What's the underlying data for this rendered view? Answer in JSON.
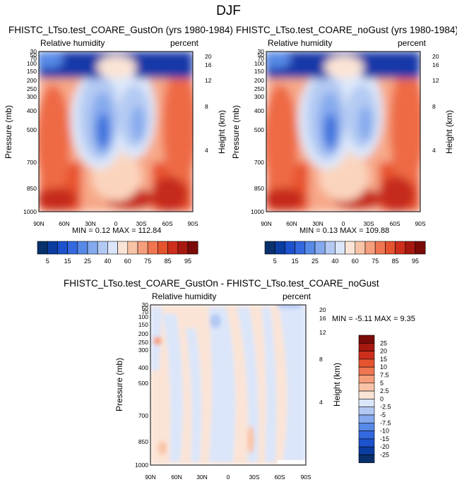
{
  "page_title": "DJF",
  "chart_data": [
    {
      "type": "heatmap",
      "title": "FHISTC_LTso.test_COARE_GustOn (yrs 1980-1984)",
      "left_label": "Relative humidity",
      "right_label": "percent",
      "ylabel": "Pressure (mb)",
      "ylabel_right": "Height (km)",
      "x_ticks": [
        "90N",
        "60N",
        "30N",
        "0",
        "30S",
        "60S",
        "90S"
      ],
      "y_ticks": [
        "1000",
        "850",
        "700",
        "500",
        "400",
        "300",
        "250",
        "200",
        "150",
        "100",
        "70",
        "50",
        "30"
      ],
      "height_ticks": [
        "4",
        "8",
        "12",
        "16",
        "20"
      ],
      "stats": {
        "min_label": "MIN =",
        "min": "0.12",
        "max_label": "MAX =",
        "max": "112.84"
      }
    },
    {
      "type": "heatmap",
      "title": "FHISTC_LTso.test_COARE_noGust (yrs 1980-1984)",
      "left_label": "Relative humidity",
      "right_label": "percent",
      "ylabel": "Pressure (mb)",
      "ylabel_right": "Height (km)",
      "x_ticks": [
        "90N",
        "60N",
        "30N",
        "0",
        "30S",
        "60S",
        "90S"
      ],
      "y_ticks": [
        "1000",
        "850",
        "700",
        "500",
        "400",
        "300",
        "250",
        "200",
        "150",
        "100",
        "70",
        "50",
        "30"
      ],
      "height_ticks": [
        "4",
        "8",
        "12",
        "16",
        "20"
      ],
      "stats": {
        "min_label": "MIN =",
        "min": "0.13",
        "max_label": "MAX =",
        "max": "109.88"
      }
    },
    {
      "type": "heatmap",
      "title": "FHISTC_LTso.test_COARE_GustOn - FHISTC_LTso.test_COARE_noGust",
      "left_label": "Relative humidity",
      "right_label": "percent",
      "ylabel": "Pressure (mb)",
      "ylabel_right": "Height (km)",
      "x_ticks": [
        "90N",
        "60N",
        "30N",
        "0",
        "30S",
        "60S",
        "90S"
      ],
      "y_ticks": [
        "1000",
        "850",
        "700",
        "500",
        "400",
        "300",
        "250",
        "200",
        "150",
        "100",
        "70",
        "50",
        "30"
      ],
      "height_ticks": [
        "4",
        "8",
        "12",
        "16",
        "20"
      ],
      "stats": {
        "min_label": "MIN =",
        "min": "-5.11",
        "max_label": "MAX =",
        "max": "9.35"
      }
    }
  ],
  "colorbar_top": {
    "labels": [
      "5",
      "15",
      "25",
      "40",
      "60",
      "75",
      "85",
      "95"
    ],
    "colors": [
      "#08306b",
      "#0b3ca0",
      "#1c52cd",
      "#3468de",
      "#5789e6",
      "#85a9ee",
      "#b3c9f3",
      "#dbe6fa",
      "#fbe4d6",
      "#f9c3a7",
      "#f59e7c",
      "#ef7651",
      "#e5532f",
      "#ce2f1c",
      "#a71810",
      "#7a0b08"
    ]
  },
  "colorbar_diff": {
    "labels": [
      "25",
      "20",
      "15",
      "10",
      "7.5",
      "5",
      "2.5",
      "0",
      "-2.5",
      "-5",
      "-7.5",
      "-10",
      "-15",
      "-20",
      "-25"
    ],
    "colors": [
      "#7a0b08",
      "#a71810",
      "#ce2f1c",
      "#e5532f",
      "#ef7651",
      "#f59e7c",
      "#f9c3a7",
      "#fbe4d6",
      "#dbe6fa",
      "#b3c9f3",
      "#85a9ee",
      "#5789e6",
      "#3468de",
      "#1c52cd",
      "#0b3ca0",
      "#08306b"
    ]
  }
}
